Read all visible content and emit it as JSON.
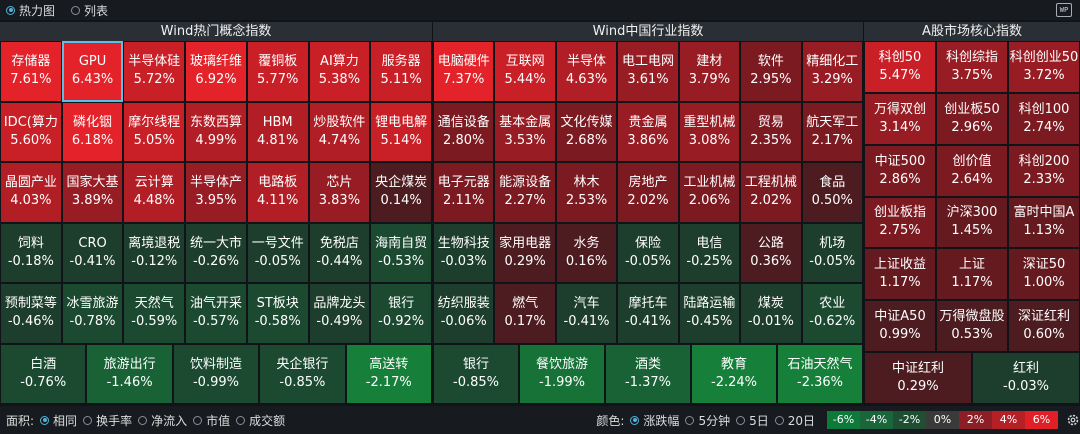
{
  "view": {
    "heatmap_label": "热力图",
    "list_label": "列表",
    "wp_badge": "WP"
  },
  "panels": [
    {
      "title": "Wind热门概念指数",
      "cols": 7,
      "rows": [
        [
          [
            "存储器",
            "7.61%"
          ],
          [
            "GPU",
            "6.43%"
          ],
          [
            "半导体硅",
            "5.72%"
          ],
          [
            "玻璃纤维",
            "6.92%"
          ],
          [
            "覆铜板",
            "5.77%"
          ],
          [
            "AI算力",
            "5.38%"
          ],
          [
            "服务器",
            "5.11%"
          ]
        ],
        [
          [
            "IDC(算力",
            "5.60%"
          ],
          [
            "磷化铟",
            "6.18%"
          ],
          [
            "摩尔线程",
            "5.05%"
          ],
          [
            "东数西算",
            "4.99%"
          ],
          [
            "HBM",
            "4.81%"
          ],
          [
            "炒股软件",
            "4.74%"
          ],
          [
            "锂电电解",
            "5.14%"
          ]
        ],
        [
          [
            "晶圆产业",
            "4.03%"
          ],
          [
            "国家大基",
            "3.89%"
          ],
          [
            "云计算",
            "4.48%"
          ],
          [
            "半导体产",
            "3.95%"
          ],
          [
            "电路板",
            "4.11%"
          ],
          [
            "芯片",
            "3.83%"
          ],
          [
            "央企煤炭",
            "0.14%"
          ]
        ],
        [
          [
            "饲料",
            "-0.18%"
          ],
          [
            "CRO",
            "-0.41%"
          ],
          [
            "离境退税",
            "-0.12%"
          ],
          [
            "统一大市",
            "-0.26%"
          ],
          [
            "一号文件",
            "-0.05%"
          ],
          [
            "免税店",
            "-0.44%"
          ],
          [
            "海南自贸",
            "-0.53%"
          ]
        ],
        [
          [
            "预制菜等",
            "-0.46%"
          ],
          [
            "冰雪旅游",
            "-0.78%"
          ],
          [
            "天然气",
            "-0.59%"
          ],
          [
            "油气开采",
            "-0.57%"
          ],
          [
            "ST板块",
            "-0.58%"
          ],
          [
            "品牌龙头",
            "-0.49%"
          ],
          [
            "银行",
            "-0.92%"
          ]
        ],
        [
          [
            "白酒",
            "-0.76%"
          ],
          [
            "旅游出行",
            "-1.46%"
          ],
          [
            "饮料制造",
            "-0.99%"
          ],
          [
            "央企银行",
            "-0.85%"
          ],
          [
            "高送转",
            "-2.17%"
          ]
        ]
      ]
    },
    {
      "title": "Wind中国行业指数",
      "cols": 7,
      "rows": [
        [
          [
            "电脑硬件",
            "7.37%"
          ],
          [
            "互联网",
            "5.44%"
          ],
          [
            "半导体",
            "4.63%"
          ],
          [
            "电工电网",
            "3.61%"
          ],
          [
            "建材",
            "3.79%"
          ],
          [
            "软件",
            "2.95%"
          ],
          [
            "精细化工",
            "3.29%"
          ]
        ],
        [
          [
            "通信设备",
            "2.80%"
          ],
          [
            "基本金属",
            "3.53%"
          ],
          [
            "文化传媒",
            "2.68%"
          ],
          [
            "贵金属",
            "3.86%"
          ],
          [
            "重型机械",
            "3.08%"
          ],
          [
            "贸易",
            "2.35%"
          ],
          [
            "航天军工",
            "2.17%"
          ]
        ],
        [
          [
            "电子元器",
            "2.11%"
          ],
          [
            "能源设备",
            "2.27%"
          ],
          [
            "林木",
            "2.53%"
          ],
          [
            "房地产",
            "2.02%"
          ],
          [
            "工业机械",
            "2.06%"
          ],
          [
            "工程机械",
            "2.02%"
          ],
          [
            "食品",
            "0.50%"
          ]
        ],
        [
          [
            "生物科技",
            "-0.03%"
          ],
          [
            "家用电器",
            "0.29%"
          ],
          [
            "水务",
            "0.16%"
          ],
          [
            "保险",
            "-0.05%"
          ],
          [
            "电信",
            "-0.25%"
          ],
          [
            "公路",
            "0.36%"
          ],
          [
            "机场",
            "-0.05%"
          ]
        ],
        [
          [
            "纺织服装",
            "-0.06%"
          ],
          [
            "燃气",
            "0.17%"
          ],
          [
            "汽车",
            "-0.41%"
          ],
          [
            "摩托车",
            "-0.41%"
          ],
          [
            "陆路运输",
            "-0.45%"
          ],
          [
            "煤炭",
            "-0.01%"
          ],
          [
            "农业",
            "-0.62%"
          ]
        ],
        [
          [
            "银行",
            "-0.85%"
          ],
          [
            "餐饮旅游",
            "-1.99%"
          ],
          [
            "酒类",
            "-1.37%"
          ],
          [
            "教育",
            "-2.24%"
          ],
          [
            "石油天然气",
            "-2.36%"
          ]
        ]
      ]
    },
    {
      "title": "A股市场核心指数",
      "cols": 3,
      "rows": [
        [
          [
            "科创50",
            "5.47%"
          ],
          [
            "科创综指",
            "3.75%"
          ],
          [
            "科创创业50",
            "3.72%"
          ]
        ],
        [
          [
            "万得双创",
            "3.14%"
          ],
          [
            "创业板50",
            "2.96%"
          ],
          [
            "科创100",
            "2.74%"
          ]
        ],
        [
          [
            "中证500",
            "2.86%"
          ],
          [
            "创价值",
            "2.64%"
          ],
          [
            "科创200",
            "2.33%"
          ]
        ],
        [
          [
            "创业板指",
            "2.75%"
          ],
          [
            "沪深300",
            "1.45%"
          ],
          [
            "富时中国A",
            "1.13%"
          ]
        ],
        [
          [
            "上证收益",
            "1.17%"
          ],
          [
            "上证",
            "1.17%"
          ],
          [
            "深证50",
            "1.00%"
          ]
        ],
        [
          [
            "中证A50",
            "0.99%"
          ],
          [
            "万得微盘股",
            "0.53%"
          ],
          [
            "深证红利",
            "0.60%"
          ]
        ],
        [
          [
            "中证红利",
            "0.29%"
          ],
          [
            "红利",
            "-0.03%"
          ]
        ]
      ]
    }
  ],
  "bottom": {
    "area_label": "面积:",
    "area_options": [
      "相同",
      "换手率",
      "净流入",
      "市值",
      "成交额"
    ],
    "color_label": "颜色:",
    "color_options": [
      "涨跌幅",
      "5分钟",
      "5日",
      "20日"
    ],
    "legend": [
      "-6%",
      "-4%",
      "-2%",
      "0%",
      "2%",
      "4%",
      "6%"
    ],
    "legend_colors": [
      "#0d7a3a",
      "#18663a",
      "#1f4f33",
      "#3a3a3a",
      "#8c1f25",
      "#b51f26",
      "#e01f26"
    ]
  }
}
